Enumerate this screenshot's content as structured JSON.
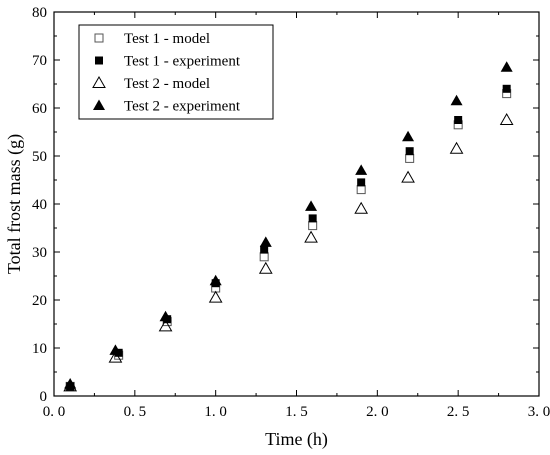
{
  "chart_data": {
    "type": "scatter",
    "xlabel": "Time (h)",
    "ylabel": "Total frost mass (g)",
    "xlim": [
      0.0,
      3.0
    ],
    "ylim": [
      0,
      80
    ],
    "x_ticks": [
      0.0,
      0.5,
      1.0,
      1.5,
      2.0,
      2.5,
      3.0
    ],
    "x_tick_labels": [
      "0. 0",
      "0. 5",
      "1. 0",
      "1. 5",
      "2. 0",
      "2. 5",
      "3. 0"
    ],
    "y_ticks": [
      0,
      10,
      20,
      30,
      40,
      50,
      60,
      70,
      80
    ],
    "y_tick_labels": [
      "0",
      "10",
      "20",
      "30",
      "40",
      "50",
      "60",
      "70",
      "80"
    ],
    "grid": false,
    "legend_position": "top-left",
    "series": [
      {
        "name": "Test 1 - model",
        "marker": "square-open",
        "x": [
          0.1,
          0.4,
          0.7,
          1.0,
          1.3,
          1.6,
          1.9,
          2.2,
          2.5,
          2.8
        ],
        "y": [
          2.0,
          8.5,
          15.5,
          22.5,
          29.0,
          35.5,
          43.0,
          49.5,
          56.5,
          63.0
        ]
      },
      {
        "name": "Test 1 - experiment",
        "marker": "square-filled",
        "x": [
          0.1,
          0.4,
          0.7,
          1.0,
          1.3,
          1.6,
          1.9,
          2.2,
          2.5,
          2.8
        ],
        "y": [
          2.0,
          9.0,
          16.0,
          23.5,
          30.5,
          37.0,
          44.5,
          51.0,
          57.5,
          64.0
        ]
      },
      {
        "name": "Test 2 - model",
        "marker": "triangle-open",
        "x": [
          0.1,
          0.38,
          0.69,
          1.0,
          1.31,
          1.59,
          1.9,
          2.19,
          2.49,
          2.8
        ],
        "y": [
          2.0,
          8.0,
          14.5,
          20.5,
          26.5,
          33.0,
          39.0,
          45.5,
          51.5,
          57.5
        ]
      },
      {
        "name": "Test 2 - experiment",
        "marker": "triangle-filled",
        "x": [
          0.1,
          0.38,
          0.69,
          1.0,
          1.31,
          1.59,
          1.9,
          2.19,
          2.49,
          2.8
        ],
        "y": [
          2.5,
          9.5,
          16.5,
          24.0,
          32.0,
          39.5,
          47.0,
          54.0,
          61.5,
          68.5
        ]
      }
    ]
  }
}
